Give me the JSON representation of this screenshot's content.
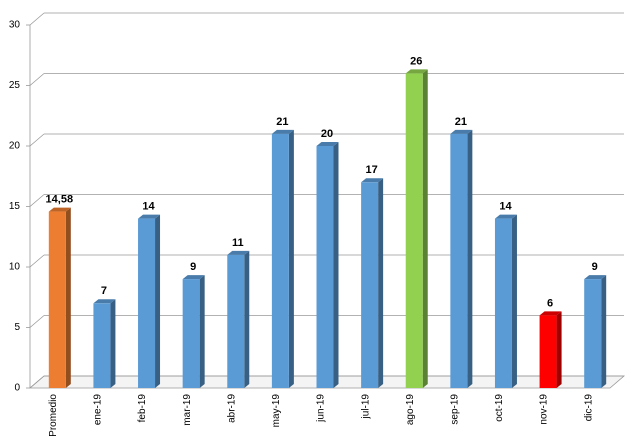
{
  "chart_data": {
    "type": "bar3d",
    "categories": [
      "Promedio",
      "ene-19",
      "feb-19",
      "mar-19",
      "abr-19",
      "may-19",
      "jun-19",
      "jul-19",
      "ago-19",
      "sep-19",
      "oct-19",
      "nov-19",
      "dic-19"
    ],
    "values": [
      14.58,
      7,
      14,
      9,
      11,
      21,
      20,
      17,
      26,
      21,
      14,
      6,
      9
    ],
    "value_labels": [
      "14,58",
      "7",
      "14",
      "9",
      "11",
      "21",
      "20",
      "17",
      "26",
      "21",
      "14",
      "6",
      "9"
    ],
    "colors": [
      "#ed7d31",
      "#5b9bd5",
      "#5b9bd5",
      "#5b9bd5",
      "#5b9bd5",
      "#5b9bd5",
      "#5b9bd5",
      "#5b9bd5",
      "#92d050",
      "#5b9bd5",
      "#5b9bd5",
      "#ff0000",
      "#5b9bd5"
    ],
    "ylim": [
      0,
      30
    ],
    "yticks": [
      0,
      5,
      10,
      15,
      20,
      25,
      30
    ],
    "grid": true
  }
}
